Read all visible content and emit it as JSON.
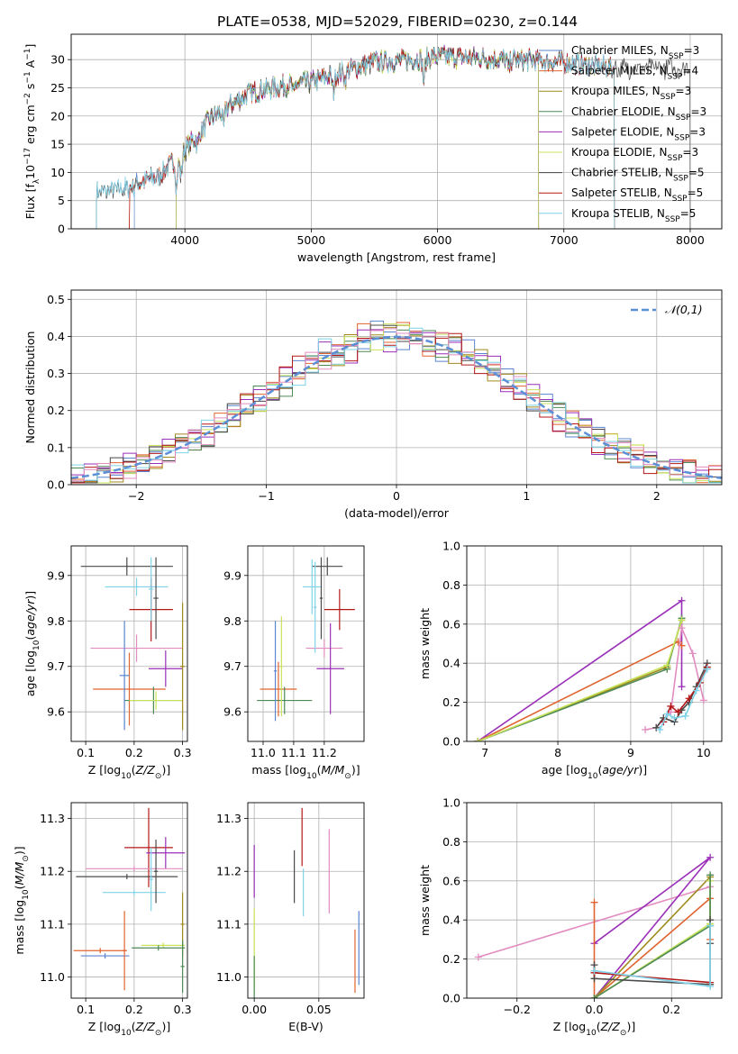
{
  "title": "PLATE=0538, MJD=52029, FIBERID=0230, z=0.144",
  "chart_data": [
    {
      "id": "spectrum",
      "type": "line",
      "xlabel": "wavelength [Angstrom, rest frame]",
      "ylabel": "Flux [f_λ 10^-17 erg cm^-2 s^-1 A^-1]",
      "xlim": [
        3100,
        8250
      ],
      "ylim": [
        0,
        34.5
      ],
      "xticks": [
        4000,
        5000,
        6000,
        7000,
        8000
      ],
      "yticks": [
        0,
        5,
        10,
        15,
        20,
        25,
        30
      ],
      "legend_position": "upper-right",
      "continuum_model": {
        "x": [
          3300,
          3500,
          3800,
          4000,
          4200,
          4500,
          4800,
          5000,
          5200,
          5500,
          5800,
          6000,
          6300,
          6600,
          7000,
          7400
        ],
        "y": [
          6.5,
          7.0,
          9.5,
          14.0,
          19.5,
          24.0,
          25.5,
          26.0,
          27.5,
          29.5,
          30.0,
          30.5,
          30.3,
          30.0,
          29.5,
          28.5
        ]
      },
      "series": [
        {
          "name": "Chabrier MILES, N_SSP=3",
          "color": "#5a84cf",
          "range": [
            3600,
            7400
          ]
        },
        {
          "name": "Salpeter MILES, N_SSP=4",
          "color": "#e0642f",
          "range": [
            3560,
            6800
          ]
        },
        {
          "name": "Kroupa MILES, N_SSP=3",
          "color": "#a08a1e",
          "range": [
            3930,
            7400
          ]
        },
        {
          "name": "Chabrier ELODIE, N_SSP=3",
          "color": "#4e8a55",
          "range": [
            3930,
            6800
          ]
        },
        {
          "name": "Salpeter ELODIE, N_SSP=3",
          "color": "#9a2fb8",
          "range": [
            3930,
            6800
          ]
        },
        {
          "name": "Kroupa ELODIE, N_SSP=3",
          "color": "#c8e35a",
          "range": [
            3930,
            6800
          ]
        },
        {
          "name": "Chabrier STELIB, N_SSP=5",
          "color": "#4a4a4a",
          "range": [
            3300,
            8000
          ]
        },
        {
          "name": "Salpeter STELIB, N_SSP=5",
          "color": "#b51818",
          "range": [
            3560,
            7400
          ]
        },
        {
          "name": "Kroupa STELIB, N_SSP=5",
          "color": "#7fd2e8",
          "range": [
            3300,
            7400
          ]
        }
      ]
    },
    {
      "id": "residuals",
      "type": "line",
      "xlabel": "(data-model)/error",
      "ylabel": "Normed distribution",
      "xlim": [
        -2.5,
        2.5
      ],
      "ylim": [
        0,
        0.525
      ],
      "xticks": [
        -2,
        -1,
        0,
        1,
        2
      ],
      "yticks": [
        0.0,
        0.1,
        0.2,
        0.3,
        0.4,
        0.5
      ],
      "legend": "𝒩(0,1)",
      "bins": {
        "start": -2.5,
        "width": 0.1,
        "count": 50
      },
      "gaussian": {
        "mean": 0,
        "sigma": 1,
        "color": "#5b8fd6"
      },
      "histogram_colors": [
        "#5a84cf",
        "#e0642f",
        "#a08a1e",
        "#4e8a55",
        "#9a2fb8",
        "#c8e35a",
        "#4a4a4a",
        "#b51818",
        "#7fd2e8",
        "#e28cc0"
      ]
    },
    {
      "id": "age-metallicity",
      "type": "scatter",
      "xlabel": "Z [log10(Z/Z☉)]",
      "ylabel": "age [log10(age/yr)]",
      "xlim": [
        0.07,
        0.31
      ],
      "ylim": [
        9.535,
        9.965
      ],
      "xticks": [
        0.1,
        0.2,
        0.3
      ],
      "yticks": [
        9.6,
        9.7,
        9.8,
        9.9
      ],
      "errorbars": [
        {
          "x": 0.185,
          "y": 9.92,
          "xerr": 0.095,
          "yerr": 0.02,
          "color": "#4a4a4a"
        },
        {
          "x": 0.205,
          "y": 9.875,
          "xerr": 0.065,
          "yerr": 0.02,
          "color": "#7fd2e8"
        },
        {
          "x": 0.235,
          "y": 9.825,
          "xerr": 0.045,
          "yerr": 0.07,
          "color": "#b51818"
        },
        {
          "x": 0.205,
          "y": 9.74,
          "xerr": 0.095,
          "yerr": 0.03,
          "color": "#e28cc0"
        },
        {
          "x": 0.265,
          "y": 9.695,
          "xerr": 0.035,
          "yerr": 0.04,
          "color": "#9a2fb8"
        },
        {
          "x": 0.19,
          "y": 9.65,
          "xerr": 0.075,
          "yerr": 0.08,
          "color": "#e0642f"
        },
        {
          "x": 0.24,
          "y": 9.625,
          "xerr": 0.06,
          "yerr": 0.03,
          "color": "#4e8a55"
        },
        {
          "x": 0.245,
          "y": 9.625,
          "xerr": 0.055,
          "yerr": 0.02,
          "color": "#c8e35a"
        },
        {
          "x": 0.18,
          "y": 9.68,
          "xerr": 0.01,
          "yerr": 0.12,
          "color": "#5a84cf"
        },
        {
          "x": 0.3,
          "y": 9.7,
          "xerr": 0.005,
          "yerr": 0.14,
          "color": "#a08a1e"
        },
        {
          "x": 0.245,
          "y": 9.85,
          "xerr": 0.005,
          "yerr": 0.09,
          "color": "#4a4a4a"
        },
        {
          "x": 0.235,
          "y": 9.87,
          "xerr": 0.005,
          "yerr": 0.07,
          "color": "#7fd2e8"
        }
      ]
    },
    {
      "id": "age-mass",
      "type": "scatter",
      "xlabel": "mass [log10(M/M☉)]",
      "ylabel": "",
      "xlim": [
        10.95,
        11.33
      ],
      "ylim": [
        9.535,
        9.965
      ],
      "xticks": [
        11.0,
        11.1,
        11.2
      ],
      "yticks": [
        9.6,
        9.7,
        9.8,
        9.9
      ],
      "errorbars": [
        {
          "x": 11.21,
          "y": 9.92,
          "xerr": 0.05,
          "yerr": 0.02,
          "color": "#4a4a4a"
        },
        {
          "x": 11.16,
          "y": 9.875,
          "xerr": 0.03,
          "yerr": 0.06,
          "color": "#7fd2e8"
        },
        {
          "x": 11.25,
          "y": 9.825,
          "xerr": 0.05,
          "yerr": 0.045,
          "color": "#b51818"
        },
        {
          "x": 11.2,
          "y": 9.74,
          "xerr": 0.06,
          "yerr": 0.02,
          "color": "#e28cc0"
        },
        {
          "x": 11.22,
          "y": 9.695,
          "xerr": 0.045,
          "yerr": 0.1,
          "color": "#9a2fb8"
        },
        {
          "x": 11.05,
          "y": 9.65,
          "xerr": 0.06,
          "yerr": 0.06,
          "color": "#e0642f"
        },
        {
          "x": 11.07,
          "y": 9.625,
          "xerr": 0.09,
          "yerr": 0.03,
          "color": "#4e8a55"
        },
        {
          "x": 11.06,
          "y": 9.7,
          "xerr": 0.005,
          "yerr": 0.11,
          "color": "#c8e35a"
        },
        {
          "x": 11.04,
          "y": 9.69,
          "xerr": 0.005,
          "yerr": 0.11,
          "color": "#5a84cf"
        },
        {
          "x": 11.19,
          "y": 9.85,
          "xerr": 0.005,
          "yerr": 0.09,
          "color": "#4a4a4a"
        },
        {
          "x": 11.17,
          "y": 9.83,
          "xerr": 0.005,
          "yerr": 0.1,
          "color": "#7fd2e8"
        }
      ]
    },
    {
      "id": "mass-weight-vs-age",
      "type": "line",
      "xlabel": "age [log10(age/yr)]",
      "ylabel": "mass weight",
      "xlim": [
        6.75,
        10.25
      ],
      "ylim": [
        0,
        1.0
      ],
      "xticks": [
        7,
        8,
        9,
        10
      ],
      "yticks": [
        0.0,
        0.2,
        0.4,
        0.6,
        0.8,
        1.0
      ],
      "series": [
        {
          "color": "#9a2fb8",
          "x": [
            6.9,
            9.7,
            9.7
          ],
          "y": [
            0.0,
            0.72,
            0.28
          ]
        },
        {
          "color": "#e0642f",
          "x": [
            6.9,
            9.65,
            9.7
          ],
          "y": [
            0.0,
            0.51,
            0.49
          ]
        },
        {
          "color": "#a08a1e",
          "x": [
            6.9,
            9.5,
            9.7
          ],
          "y": [
            0.0,
            0.38,
            0.62
          ]
        },
        {
          "color": "#4e8a55",
          "x": [
            6.9,
            9.5,
            9.7
          ],
          "y": [
            0.0,
            0.37,
            0.63
          ]
        },
        {
          "color": "#c8e35a",
          "x": [
            6.9,
            9.5,
            9.7
          ],
          "y": [
            0.0,
            0.39,
            0.62
          ]
        },
        {
          "color": "#e28cc0",
          "x": [
            9.2,
            9.35,
            9.55,
            9.7,
            9.85,
            10.0
          ],
          "y": [
            0.06,
            0.07,
            0.15,
            0.58,
            0.45,
            0.21
          ]
        },
        {
          "color": "#4a4a4a",
          "x": [
            9.35,
            9.45,
            9.6,
            9.7,
            9.8,
            9.9,
            10.05
          ],
          "y": [
            0.07,
            0.12,
            0.1,
            0.16,
            0.2,
            0.28,
            0.4
          ]
        },
        {
          "color": "#b51818",
          "x": [
            9.45,
            9.55,
            9.65,
            9.8,
            9.95,
            10.05
          ],
          "y": [
            0.1,
            0.18,
            0.15,
            0.22,
            0.3,
            0.38
          ]
        },
        {
          "color": "#7fd2e8",
          "x": [
            9.4,
            9.5,
            9.6,
            9.75,
            9.9,
            10.05
          ],
          "y": [
            0.06,
            0.14,
            0.12,
            0.13,
            0.26,
            0.37
          ]
        }
      ]
    },
    {
      "id": "mass-metallicity",
      "type": "scatter",
      "xlabel": "Z [log10(Z/Z☉)]",
      "ylabel": "mass [log10(M/M☉)]",
      "xlim": [
        0.07,
        0.31
      ],
      "ylim": [
        10.96,
        11.33
      ],
      "xticks": [
        0.1,
        0.2,
        0.3
      ],
      "yticks": [
        11.0,
        11.1,
        11.2,
        11.3
      ],
      "errorbars": [
        {
          "x": 0.23,
          "y": 11.245,
          "xerr": 0.05,
          "yerr": 0.075,
          "color": "#b51818"
        },
        {
          "x": 0.265,
          "y": 11.235,
          "xerr": 0.04,
          "yerr": 0.03,
          "color": "#9a2fb8"
        },
        {
          "x": 0.2,
          "y": 11.205,
          "xerr": 0.1,
          "yerr": 0.005,
          "color": "#e28cc0"
        },
        {
          "x": 0.185,
          "y": 11.19,
          "xerr": 0.105,
          "yerr": 0.005,
          "color": "#4a4a4a"
        },
        {
          "x": 0.2,
          "y": 11.16,
          "xerr": 0.065,
          "yerr": 0.005,
          "color": "#7fd2e8"
        },
        {
          "x": 0.26,
          "y": 11.06,
          "xerr": 0.045,
          "yerr": 0.005,
          "color": "#c8e35a"
        },
        {
          "x": 0.25,
          "y": 11.055,
          "xerr": 0.055,
          "yerr": 0.005,
          "color": "#4e8a55"
        },
        {
          "x": 0.13,
          "y": 11.05,
          "xerr": 0.055,
          "yerr": 0.005,
          "color": "#e0642f"
        },
        {
          "x": 0.14,
          "y": 11.04,
          "xerr": 0.05,
          "yerr": 0.005,
          "color": "#5a84cf"
        },
        {
          "x": 0.18,
          "y": 11.05,
          "xerr": 0.004,
          "yerr": 0.075,
          "color": "#e0642f"
        },
        {
          "x": 0.235,
          "y": 11.185,
          "xerr": 0.004,
          "yerr": 0.06,
          "color": "#7fd2e8"
        },
        {
          "x": 0.245,
          "y": 11.2,
          "xerr": 0.004,
          "yerr": 0.06,
          "color": "#4a4a4a"
        },
        {
          "x": 0.3,
          "y": 11.1,
          "xerr": 0.004,
          "yerr": 0.06,
          "color": "#a08a1e"
        },
        {
          "x": 0.3,
          "y": 11.02,
          "xerr": 0.004,
          "yerr": 0.05,
          "color": "#4e8a55"
        }
      ]
    },
    {
      "id": "mass-ebv",
      "type": "scatter",
      "xlabel": "E(B-V)",
      "ylabel": "",
      "xlim": [
        -0.005,
        0.085
      ],
      "ylim": [
        10.96,
        11.33
      ],
      "xticks": [
        0.0,
        0.05
      ],
      "yticks": [
        11.0,
        11.1,
        11.2,
        11.3
      ],
      "errorbars": [
        {
          "x": 0.0,
          "y": 11.2,
          "xerr": 0,
          "yerr": 0.05,
          "color": "#9a2fb8"
        },
        {
          "x": 0.0,
          "y": 11.05,
          "xerr": 0,
          "yerr": 0.08,
          "color": "#c8e35a"
        },
        {
          "x": 0.0,
          "y": 11.0,
          "xerr": 0,
          "yerr": 0.04,
          "color": "#4e8a55"
        },
        {
          "x": 0.031,
          "y": 11.19,
          "xerr": 0,
          "yerr": 0.05,
          "color": "#4a4a4a"
        },
        {
          "x": 0.037,
          "y": 11.265,
          "xerr": 0,
          "yerr": 0.055,
          "color": "#b51818"
        },
        {
          "x": 0.038,
          "y": 11.16,
          "xerr": 0,
          "yerr": 0.045,
          "color": "#7fd2e8"
        },
        {
          "x": 0.058,
          "y": 11.2,
          "xerr": 0,
          "yerr": 0.08,
          "color": "#e28cc0"
        },
        {
          "x": 0.078,
          "y": 11.03,
          "xerr": 0,
          "yerr": 0.06,
          "color": "#e0642f"
        },
        {
          "x": 0.081,
          "y": 11.055,
          "xerr": 0,
          "yerr": 0.07,
          "color": "#5a84cf"
        }
      ]
    },
    {
      "id": "mass-weight-vs-metallicity",
      "type": "line",
      "xlabel": "Z [log10(Z/Z☉)]",
      "ylabel": "mass weight",
      "xlim": [
        -0.33,
        0.33
      ],
      "ylim": [
        0,
        1.0
      ],
      "xticks": [
        -0.2,
        0.0,
        0.2
      ],
      "yticks": [
        0.0,
        0.2,
        0.4,
        0.6,
        0.8,
        1.0
      ],
      "series": [
        {
          "color": "#e28cc0",
          "x": [
            -0.3,
            0.3
          ],
          "y": [
            0.21,
            0.57
          ]
        },
        {
          "color": "#9a2fb8",
          "x": [
            0.0,
            0.3,
            0.0
          ],
          "y": [
            0.28,
            0.72,
            0.0
          ]
        },
        {
          "color": "#e0642f",
          "x": [
            0.0,
            0.0,
            0.3,
            0.3
          ],
          "y": [
            0.49,
            0.0,
            0.51,
            0.3
          ]
        },
        {
          "color": "#a08a1e",
          "x": [
            0.0,
            0.3,
            0.3
          ],
          "y": [
            0.0,
            0.62,
            0.38
          ]
        },
        {
          "color": "#c8e35a",
          "x": [
            0.0,
            0.3,
            0.3
          ],
          "y": [
            0.0,
            0.38,
            0.6
          ]
        },
        {
          "color": "#4e8a55",
          "x": [
            0.0,
            0.3,
            0.3
          ],
          "y": [
            0.0,
            0.37,
            0.63
          ]
        },
        {
          "color": "#4a4a4a",
          "x": [
            0.0,
            0.0,
            0.3,
            0.3,
            0.3
          ],
          "y": [
            0.17,
            0.1,
            0.07,
            0.28,
            0.4
          ]
        },
        {
          "color": "#b51818",
          "x": [
            0.0,
            0.3
          ],
          "y": [
            0.13,
            0.08
          ]
        },
        {
          "color": "#7fd2e8",
          "x": [
            0.0,
            0.3,
            0.3
          ],
          "y": [
            0.14,
            0.06,
            0.37
          ]
        }
      ]
    }
  ]
}
